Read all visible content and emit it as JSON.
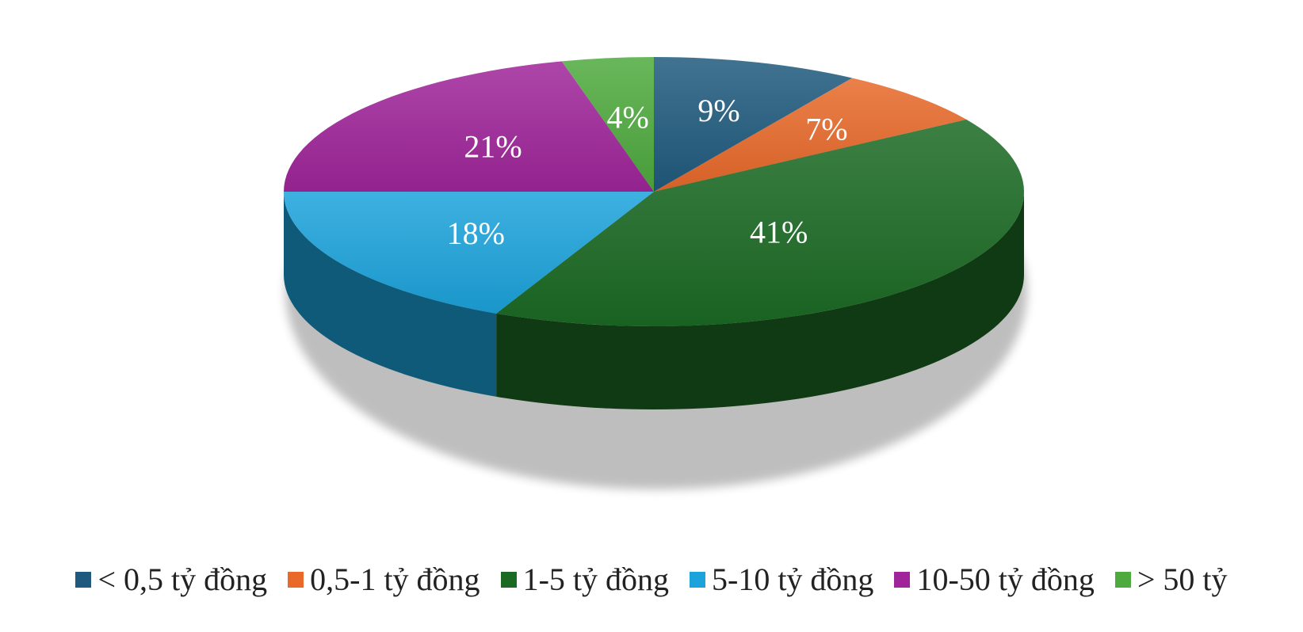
{
  "chart_data": {
    "type": "pie",
    "style": "3d",
    "title": "",
    "legend_position": "bottom",
    "slices": [
      {
        "label": "< 0,5 tỷ đồng",
        "value": 9,
        "display": "9%",
        "color": "#1f5a7e"
      },
      {
        "label": "0,5-1 tỷ đồng",
        "value": 7,
        "display": "7%",
        "color": "#e8692a"
      },
      {
        "label": "1-5 tỷ đồng",
        "value": 41,
        "display": "41%",
        "color": "#1b6a24"
      },
      {
        "label": "5-10 tỷ đồng",
        "value": 18,
        "display": "18%",
        "color": "#1ca3dc"
      },
      {
        "label": "10-50 tỷ đồng",
        "value": 21,
        "display": "21%",
        "color": "#a0259a"
      },
      {
        "label": "> 50 tỷ",
        "value": 4,
        "display": "4%",
        "color": "#4eaa3e"
      }
    ]
  }
}
